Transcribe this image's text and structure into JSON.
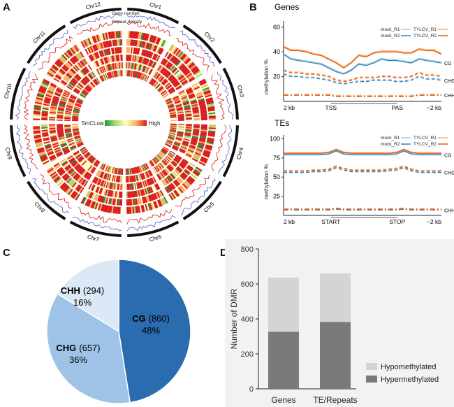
{
  "panels": {
    "a": {
      "letter": "A",
      "chromosomes": [
        "Chr1",
        "Chr2",
        "Chr3",
        "Chr4",
        "Chr5",
        "Chr6",
        "Chr7",
        "Chr8",
        "Chr9",
        "Chr10",
        "Chr11",
        "Chr12"
      ],
      "track_labels": [
        "Gene number",
        "Repeat density"
      ],
      "legend_title": "5mC",
      "legend_low": "Low",
      "legend_high": "High",
      "gradient_colors": [
        "#1a9641",
        "#a6d96a",
        "#ffffbf",
        "#fdae61",
        "#d7191c"
      ]
    },
    "b": {
      "letter": "B",
      "genes_title": "Genes",
      "tes_title": "TEs",
      "ylabel": "methylation %",
      "legend": [
        "mock_R1",
        "mock_R2",
        "TYLCV_R1",
        "TYLCV_R2"
      ],
      "colors": {
        "mock_R1": "#9ecae1",
        "mock_R2": "#3182bd",
        "tylcv_R1": "#fdae6b",
        "tylcv_R2": "#e6550d"
      },
      "genes_xticks": [
        "2 kb",
        "TSS",
        "PAS",
        "−2 kb"
      ],
      "tes_xticks": [
        "2 kb",
        "START",
        "STOP",
        "−2 kb"
      ]
    },
    "c": {
      "letter": "C"
    },
    "d": {
      "letter": "D"
    }
  },
  "chart_data": [
    {
      "type": "line",
      "title": "Genes",
      "ylabel": "methylation %",
      "ylim": [
        0,
        65
      ],
      "yticks": [
        20,
        40,
        60
      ],
      "xticks": [
        "2 kb",
        "TSS",
        "PAS",
        "−2 kb"
      ],
      "contexts": [
        {
          "name": "CG",
          "mock": [
            38,
            34,
            33,
            32,
            31,
            30,
            27,
            24,
            22,
            25,
            30,
            29,
            31,
            34,
            33,
            33,
            32,
            31,
            34,
            33,
            32,
            31
          ],
          "tylcv": [
            44,
            41,
            41,
            40,
            38,
            37,
            34,
            31,
            27,
            31,
            37,
            36,
            39,
            40,
            40,
            40,
            39,
            39,
            42,
            41,
            41,
            38
          ]
        },
        {
          "name": "CHG",
          "mock": [
            22,
            20,
            20,
            19,
            19,
            18,
            17,
            15,
            14,
            15,
            16,
            16,
            17,
            17,
            17,
            16,
            16,
            17,
            20,
            18,
            18,
            17
          ],
          "tylcv": [
            25,
            23,
            23,
            22,
            22,
            21,
            20,
            17,
            16,
            17,
            19,
            19,
            19,
            20,
            20,
            19,
            19,
            20,
            23,
            21,
            21,
            20
          ]
        },
        {
          "name": "CHH",
          "mock": [
            5,
            5,
            5,
            5,
            5,
            5,
            5,
            4,
            4,
            4,
            4,
            4,
            4,
            4,
            4,
            4,
            4,
            4,
            5,
            5,
            5,
            5
          ],
          "tylcv": [
            5,
            5,
            5,
            5,
            5,
            5,
            5,
            4,
            4,
            4,
            4,
            4,
            4,
            4,
            4,
            4,
            4,
            4,
            5,
            5,
            5,
            5
          ]
        }
      ]
    },
    {
      "type": "line",
      "title": "TEs",
      "ylabel": "methylation %",
      "ylim": [
        0,
        105
      ],
      "yticks": [
        25,
        50,
        75,
        100
      ],
      "xticks": [
        "2 kb",
        "START",
        "STOP",
        "−2 kb"
      ],
      "contexts": [
        {
          "name": "CG",
          "mock": [
            79,
            79,
            79,
            79,
            79,
            79,
            80,
            84,
            80,
            79,
            79,
            79,
            79,
            79,
            79,
            80,
            84,
            80,
            79,
            79,
            79,
            79
          ],
          "tylcv": [
            81,
            81,
            81,
            81,
            81,
            81,
            82,
            86,
            82,
            81,
            81,
            81,
            81,
            81,
            81,
            82,
            86,
            82,
            81,
            81,
            81,
            81
          ]
        },
        {
          "name": "CHG",
          "mock": [
            56,
            56,
            56,
            56,
            57,
            57,
            58,
            62,
            59,
            57,
            57,
            57,
            57,
            57,
            58,
            59,
            62,
            58,
            56,
            56,
            56,
            56
          ],
          "tylcv": [
            58,
            58,
            58,
            58,
            59,
            59,
            60,
            64,
            61,
            59,
            59,
            59,
            59,
            59,
            60,
            61,
            64,
            60,
            58,
            58,
            58,
            58
          ]
        },
        {
          "name": "CHH",
          "mock": [
            7,
            7,
            7,
            7,
            7,
            7,
            7,
            8,
            7,
            7,
            7,
            7,
            7,
            7,
            7,
            7,
            8,
            7,
            7,
            7,
            7,
            7
          ],
          "tylcv": [
            8,
            8,
            8,
            8,
            8,
            8,
            8,
            9,
            8,
            8,
            8,
            8,
            8,
            8,
            8,
            8,
            9,
            8,
            8,
            8,
            8,
            8
          ]
        }
      ]
    },
    {
      "type": "pie",
      "slices": [
        {
          "name": "CG",
          "count": "(860)",
          "value": 860,
          "percent": "48%",
          "color": "#2b6cb0"
        },
        {
          "name": "CHG",
          "count": "(657)",
          "value": 657,
          "percent": "36%",
          "color": "#9fc3e6"
        },
        {
          "name": "CHH",
          "count": "(294)",
          "value": 294,
          "percent": "16%",
          "color": "#dbe8f5"
        }
      ]
    },
    {
      "type": "bar",
      "stacked": true,
      "categories": [
        "Genes",
        "TE/Repeats"
      ],
      "series": [
        {
          "name": "Hypermethylated",
          "values": [
            326,
            383
          ],
          "color": "#7a7a7a"
        },
        {
          "name": "Hypomethylated",
          "values": [
            310,
            277
          ],
          "color": "#d4d4d4"
        }
      ],
      "ylabel": "Number of DMR",
      "ylim": [
        0,
        800
      ],
      "yticks": [
        0,
        200,
        400,
        600,
        800
      ],
      "legend_position": "bottom-right"
    }
  ]
}
